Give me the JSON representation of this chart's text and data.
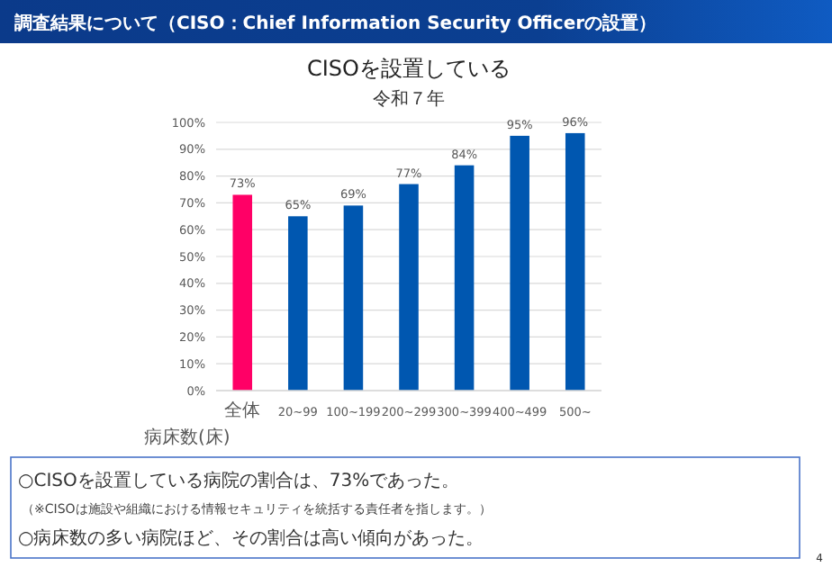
{
  "chart_data": {
    "type": "bar",
    "title": "CISOを設置している",
    "subtitle": "令和７年",
    "xlabel": "病床数(床)",
    "categories": [
      "全体",
      "20~99",
      "100~199",
      "200~299",
      "300~399",
      "400~499",
      "500~"
    ],
    "values": [
      73,
      65,
      69,
      77,
      84,
      95,
      96
    ],
    "colors": [
      "#ff0066",
      "#0057b0",
      "#0057b0",
      "#0057b0",
      "#0057b0",
      "#0057b0",
      "#0057b0"
    ],
    "ylim": [
      0,
      100
    ],
    "yticks": [
      {
        "value": 0,
        "label": "0%"
      },
      {
        "value": 10,
        "label": "10%"
      },
      {
        "value": 20,
        "label": "20%"
      },
      {
        "value": 30,
        "label": "30%"
      },
      {
        "value": 40,
        "label": "40%"
      },
      {
        "value": 50,
        "label": "50%"
      },
      {
        "value": 60,
        "label": "60%"
      },
      {
        "value": 70,
        "label": "70%"
      },
      {
        "value": 80,
        "label": "80%"
      },
      {
        "value": 90,
        "label": "90%"
      },
      {
        "value": 100,
        "label": "100%"
      }
    ],
    "value_labels": [
      "73%",
      "65%",
      "69%",
      "77%",
      "84%",
      "95%",
      "96%"
    ],
    "grid": "y",
    "annotations": [
      "調査結果について（CISO：Chief Information Security Officerの設置）",
      "○CISOを設置している病院の割合は、73%であった。",
      "（※CISOは施設や組織における情報セキュリティを統括する責任者を指します。）",
      "○病床数の多い病院ほど、その割合は高い傾向があった。",
      "4"
    ]
  }
}
